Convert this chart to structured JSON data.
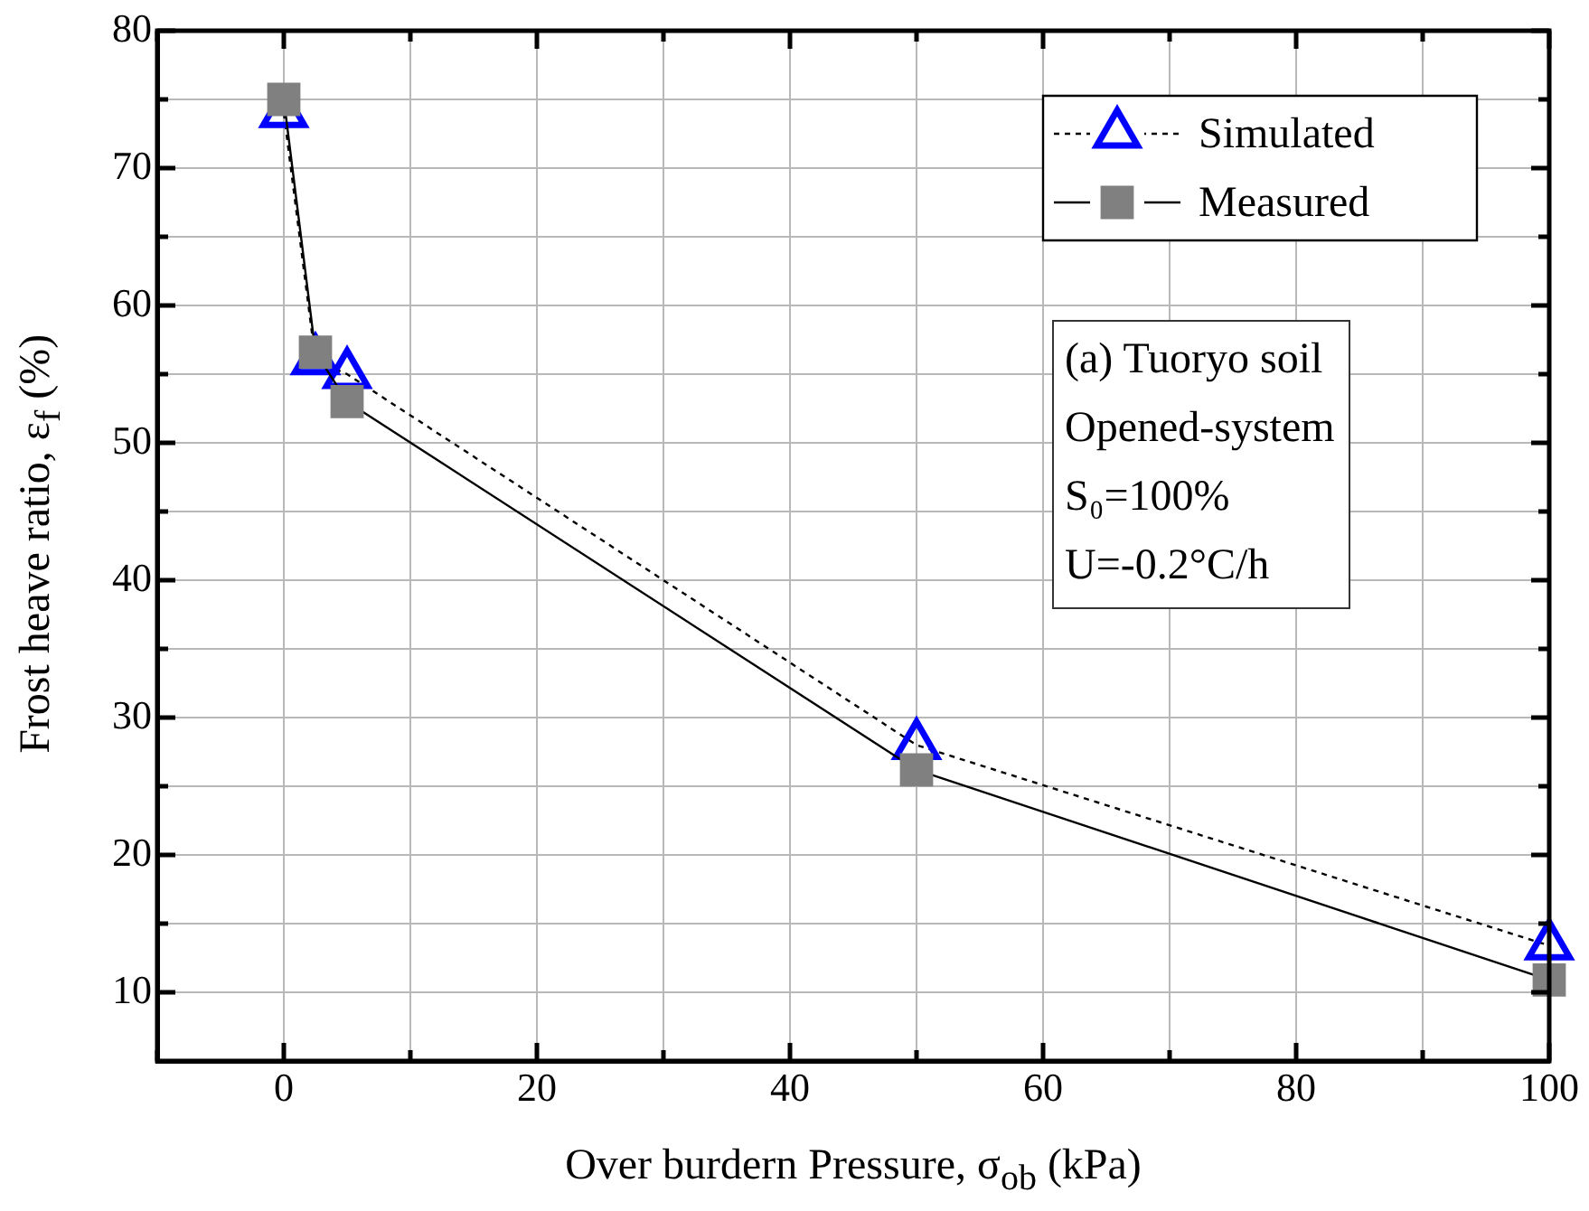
{
  "chart_data": {
    "type": "line",
    "xlabel": "Over burdern Pressure, σ$_{ob}$ (kPa)",
    "ylabel": "Frost heave ratio, ε$_{f}$ (%)",
    "xlim": [
      -10,
      100
    ],
    "xticks": [
      {
        "value": -10,
        "label": null
      },
      0,
      {
        "value": 10,
        "label": null
      },
      20,
      {
        "value": 30,
        "label": null
      },
      40,
      {
        "value": 50,
        "label": null
      },
      60,
      {
        "value": 70,
        "label": null
      },
      80,
      {
        "value": 90,
        "label": null
      },
      100
    ],
    "ylim": [
      5,
      80
    ],
    "yticks": [
      10,
      {
        "value": 15,
        "label": null
      },
      20,
      {
        "value": 25,
        "label": null
      },
      30,
      {
        "value": 35,
        "label": null
      },
      40,
      {
        "value": 45,
        "label": null
      },
      50,
      {
        "value": 55,
        "label": null
      },
      60,
      {
        "value": 65,
        "label": null
      },
      70,
      {
        "value": 75,
        "label": null
      },
      80
    ],
    "grid": true,
    "legend": "top right",
    "series": [
      {
        "name": "Simulated",
        "color": "#0000ff",
        "marker": "triangle",
        "line_style": "dotted",
        "x": [
          0,
          2.5,
          5,
          50,
          100
        ],
        "values": [
          74,
          56,
          55,
          28,
          13.4
        ]
      },
      {
        "name": "Measured",
        "color": "#808080",
        "marker": "square",
        "line_style": "solid",
        "x": [
          0,
          2.5,
          5,
          50,
          100
        ],
        "values": [
          75,
          56.6,
          53,
          26.2,
          10.9
        ]
      }
    ],
    "annotations": [
      "(a) Tuoryo soil",
      "Opened-system",
      "S₀=100%",
      "U=-0.2°C/h"
    ]
  }
}
